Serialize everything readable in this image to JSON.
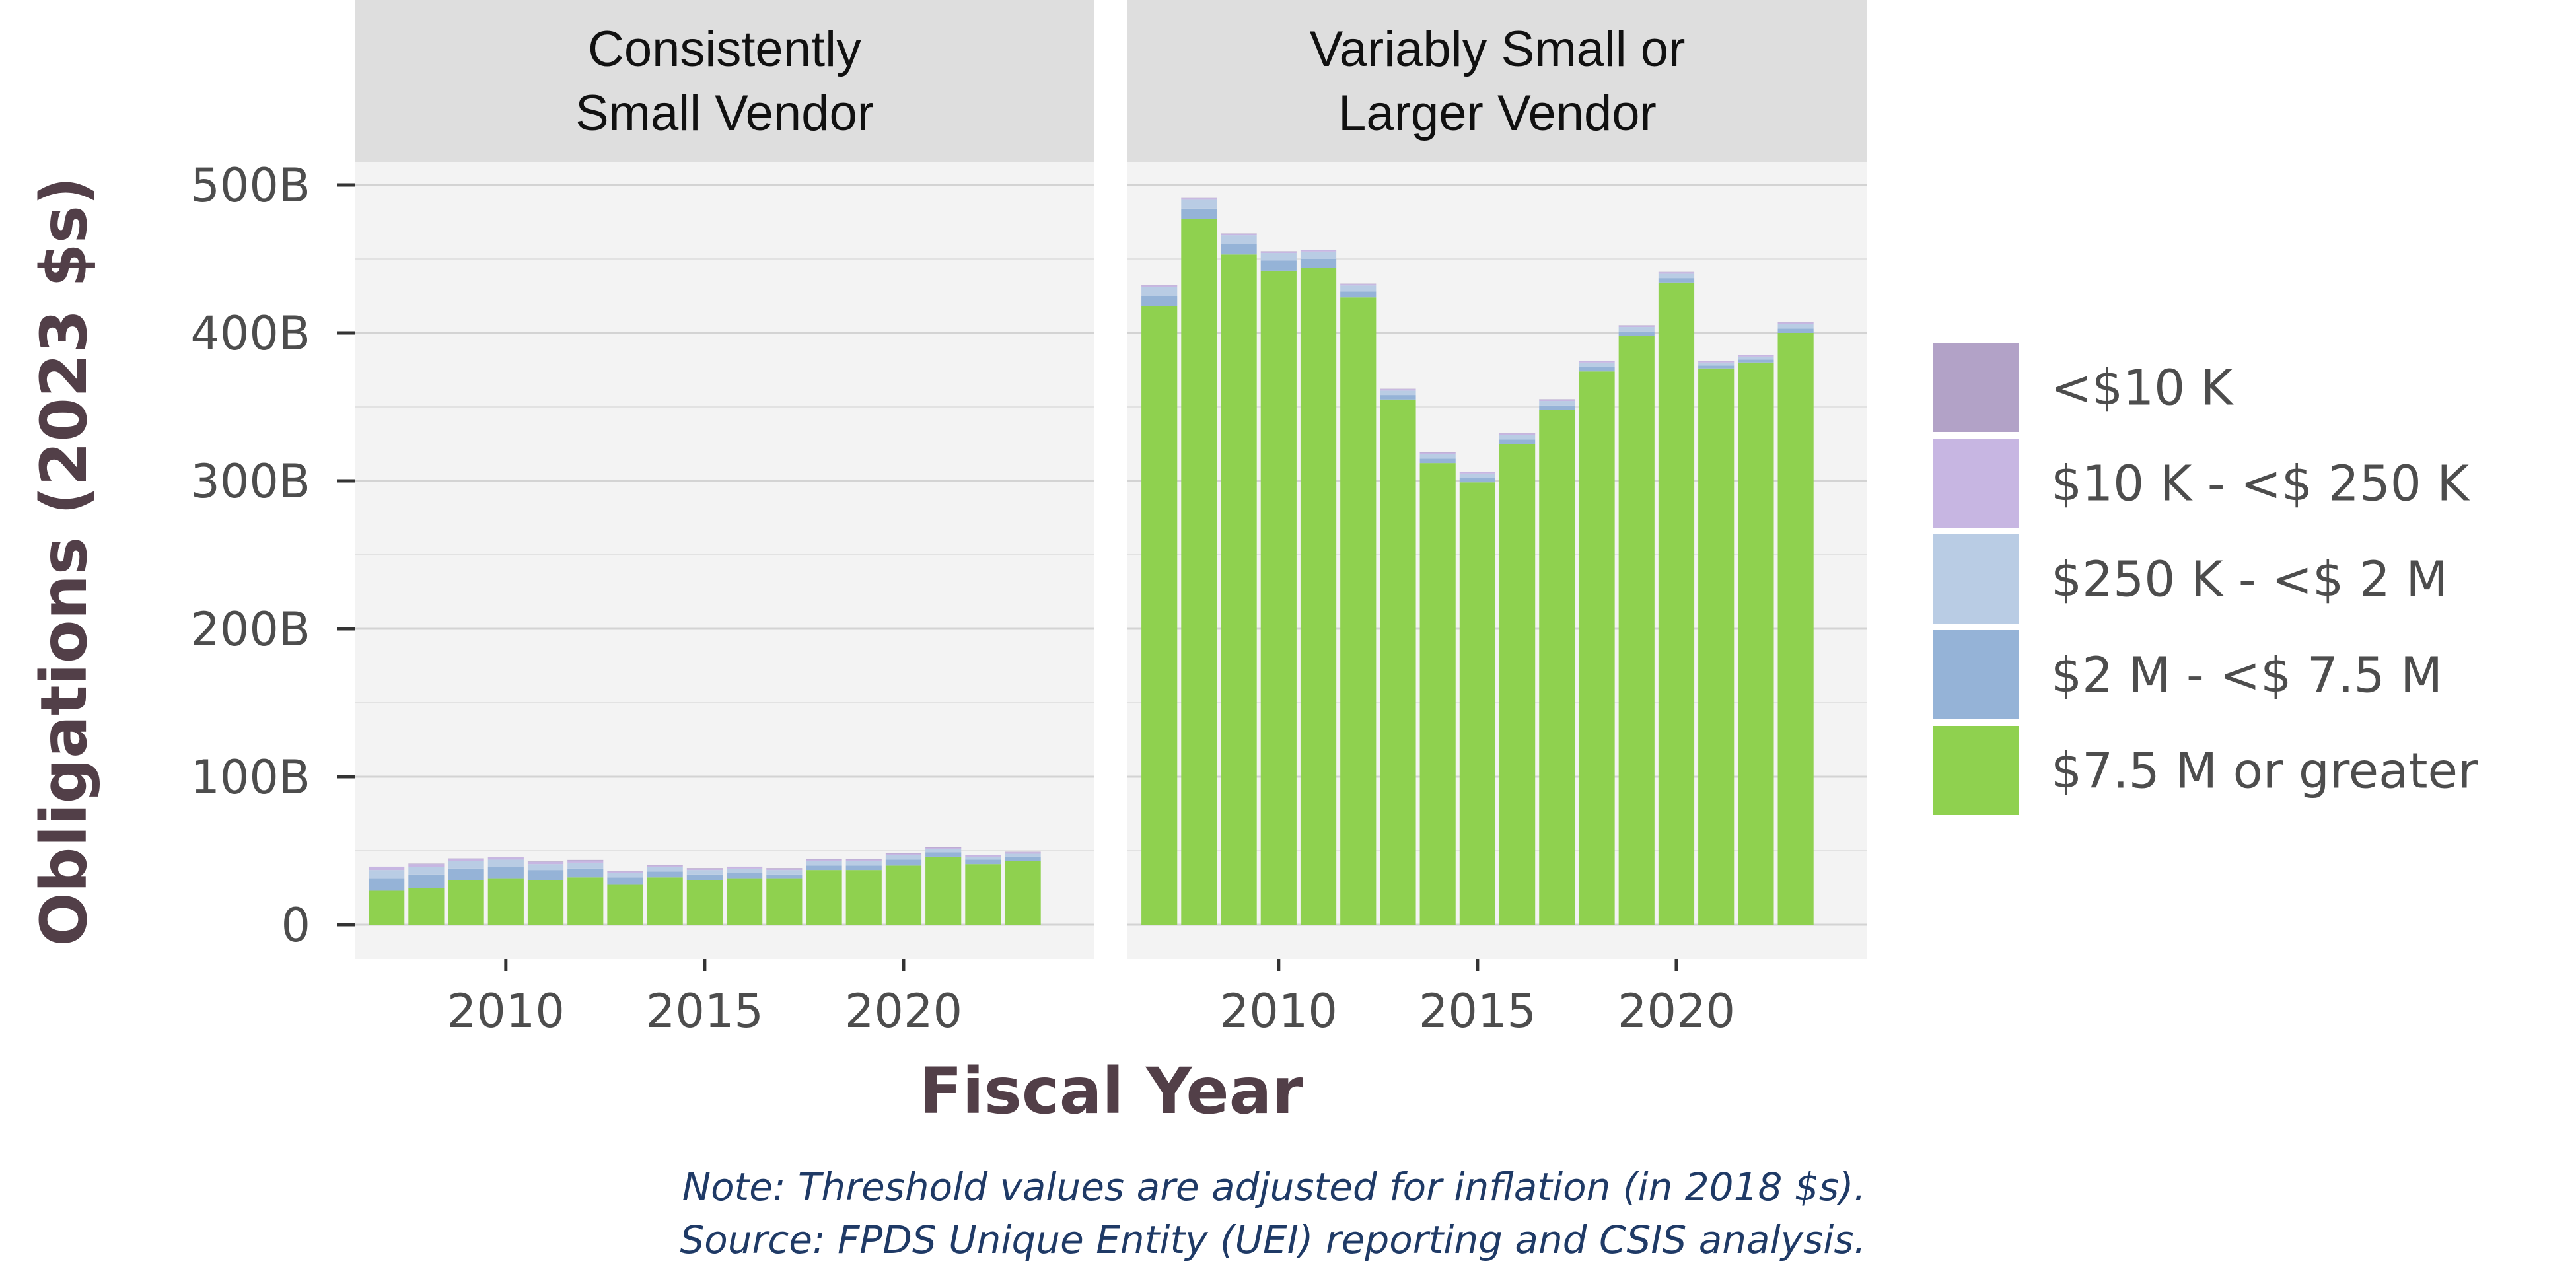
{
  "chart_data": {
    "type": "bar",
    "stacked": true,
    "x_label": "Fiscal Year",
    "y_label": "Obligations (2023 $s)",
    "ylim": [
      0,
      500
    ],
    "y_unit": "billions",
    "y_ticks": [
      0,
      100,
      200,
      300,
      400,
      500
    ],
    "y_tick_labels": [
      "0",
      "100B",
      "200B",
      "300B",
      "400B",
      "500B"
    ],
    "x_ticks": [
      2010,
      2015,
      2020
    ],
    "x_tick_labels": [
      "2010",
      "2015",
      "2020"
    ],
    "x_range": [
      2006.2,
      2024.8
    ],
    "grid": true,
    "legend_placement": "right",
    "years": [
      2007,
      2008,
      2009,
      2010,
      2011,
      2012,
      2013,
      2014,
      2015,
      2016,
      2017,
      2018,
      2019,
      2020,
      2021,
      2022,
      2023
    ],
    "legend": [
      {
        "key": "lt10k",
        "label": "<$10 K",
        "color": "#b2a2c7"
      },
      {
        "key": "10k_250k",
        "label": "$10 K - <$ 250 K",
        "color": "#c7b6e2"
      },
      {
        "key": "250k_2m",
        "label": "$250 K - <$ 2 M",
        "color": "#b9cce4"
      },
      {
        "key": "2m_7_5m",
        "label": "$2 M - <$ 7.5 M",
        "color": "#95b3d7"
      },
      {
        "key": "7_5m_plus",
        "label": "$7.5 M or greater",
        "color": "#8fd14f"
      }
    ],
    "panels": [
      {
        "title": "Consistently\nSmall Vendor",
        "title_lines": [
          "Consistently",
          "Small Vendor"
        ],
        "series": [
          {
            "key": "7_5m_plus",
            "values": [
              23,
              25,
              30,
              31,
              30,
              32,
              27,
              32,
              30,
              31,
              31,
              37,
              37,
              40,
              46,
              41,
              43
            ]
          },
          {
            "key": "2m_7_5m",
            "values": [
              8,
              9,
              8,
              8,
              7,
              6,
              5,
              4,
              4,
              4,
              3,
              3,
              3,
              4,
              3,
              3,
              3
            ]
          },
          {
            "key": "250k_2m",
            "values": [
              6,
              5,
              5,
              5,
              4,
              4,
              3,
              3,
              3,
              3,
              3,
              3,
              3,
              3,
              2,
              2,
              2
            ]
          },
          {
            "key": "10k_250k",
            "values": [
              2,
              2,
              1.5,
              1.5,
              1.5,
              1.5,
              1,
              1,
              1,
              1,
              1,
              1,
              1,
              1,
              1,
              1,
              1
            ]
          },
          {
            "key": "lt10k",
            "values": [
              0.3,
              0.3,
              0.3,
              0.3,
              0.3,
              0.3,
              0.3,
              0.3,
              0.3,
              0.3,
              0.3,
              0.3,
              0.3,
              0.3,
              0.3,
              0.3,
              0.3
            ]
          }
        ]
      },
      {
        "title": "Variably Small or\nLarger Vendor",
        "title_lines": [
          "Variably Small or",
          "Larger Vendor"
        ],
        "series": [
          {
            "key": "7_5m_plus",
            "values": [
              418,
              477,
              453,
              442,
              444,
              424,
              355,
              312,
              299,
              325,
              348,
              374,
              398,
              434,
              376,
              380,
              400
            ]
          },
          {
            "key": "2m_7_5m",
            "values": [
              7,
              7,
              7,
              7,
              6,
              4,
              3,
              3,
              3,
              3,
              3,
              3,
              3,
              3,
              2,
              2,
              3
            ]
          },
          {
            "key": "250k_2m",
            "values": [
              6,
              6,
              6,
              5,
              5,
              4,
              3,
              3,
              3,
              3,
              3,
              3,
              3,
              3,
              2,
              2,
              3
            ]
          },
          {
            "key": "10k_250k",
            "values": [
              1,
              1,
              1,
              1,
              1,
              1,
              1,
              1,
              1,
              1,
              1,
              1,
              1,
              1,
              1,
              1,
              1
            ]
          },
          {
            "key": "lt10k",
            "values": [
              0.2,
              0.2,
              0.2,
              0.2,
              0.2,
              0.2,
              0.2,
              0.2,
              0.2,
              0.2,
              0.2,
              0.2,
              0.2,
              0.2,
              0.2,
              0.2,
              0.2
            ]
          }
        ]
      }
    ],
    "notes": [
      "Note: Threshold values are adjusted for inflation (in 2018 $s).",
      "Source: FPDS Unique Entity (UEI) reporting and CSIS analysis."
    ]
  }
}
